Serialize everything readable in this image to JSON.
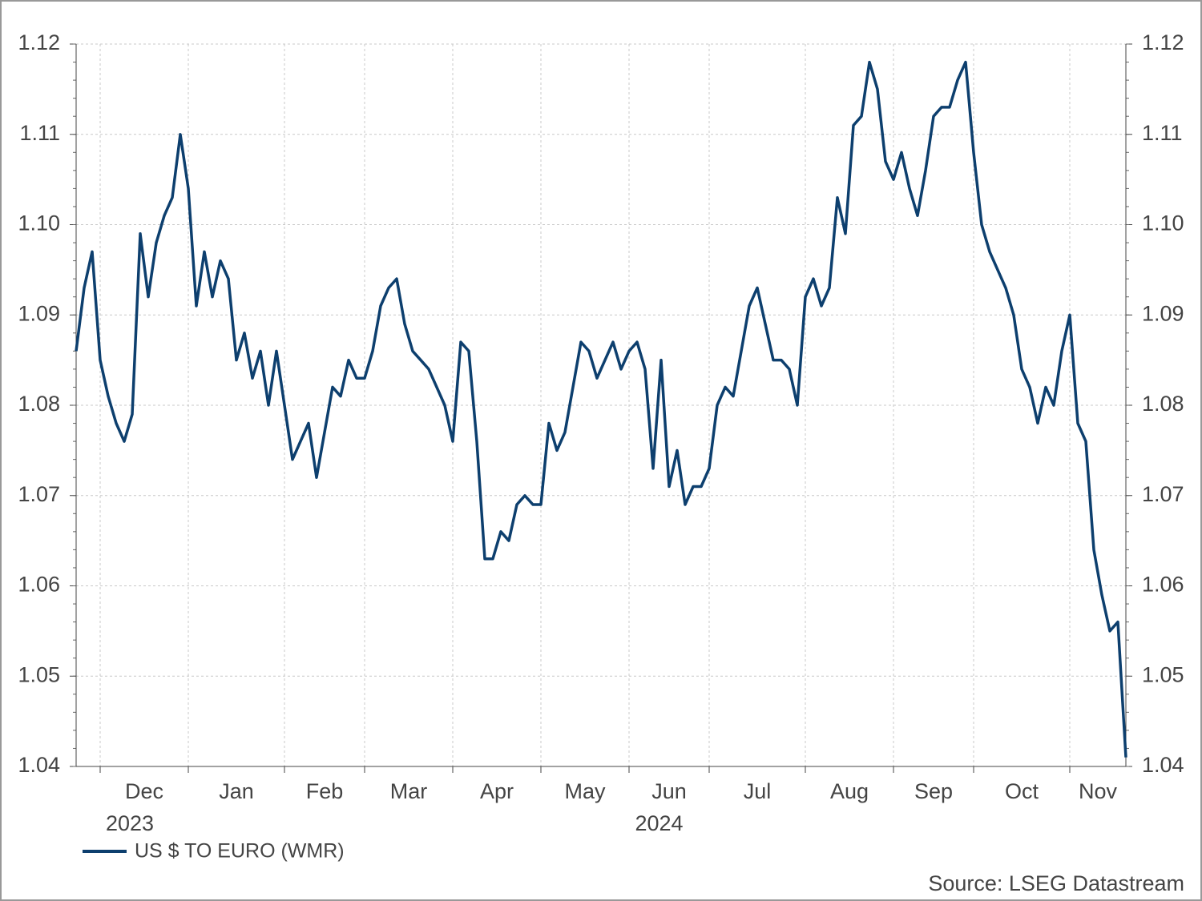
{
  "chart_data": {
    "type": "line",
    "series": [
      {
        "name": "US $ TO EURO (WMR)",
        "color": "#0d3f6e",
        "values": [
          1.086,
          1.093,
          1.097,
          1.085,
          1.081,
          1.078,
          1.076,
          1.079,
          1.099,
          1.092,
          1.098,
          1.101,
          1.103,
          1.11,
          1.104,
          1.091,
          1.097,
          1.092,
          1.096,
          1.094,
          1.085,
          1.088,
          1.083,
          1.086,
          1.08,
          1.086,
          1.08,
          1.074,
          1.076,
          1.078,
          1.072,
          1.077,
          1.082,
          1.081,
          1.085,
          1.083,
          1.083,
          1.086,
          1.091,
          1.093,
          1.094,
          1.089,
          1.086,
          1.085,
          1.084,
          1.082,
          1.08,
          1.076,
          1.087,
          1.086,
          1.076,
          1.063,
          1.063,
          1.066,
          1.065,
          1.069,
          1.07,
          1.069,
          1.069,
          1.078,
          1.075,
          1.077,
          1.082,
          1.087,
          1.086,
          1.083,
          1.085,
          1.087,
          1.084,
          1.086,
          1.087,
          1.084,
          1.073,
          1.085,
          1.071,
          1.075,
          1.069,
          1.071,
          1.071,
          1.073,
          1.08,
          1.082,
          1.081,
          1.086,
          1.091,
          1.093,
          1.089,
          1.085,
          1.085,
          1.084,
          1.08,
          1.092,
          1.094,
          1.091,
          1.093,
          1.103,
          1.099,
          1.111,
          1.112,
          1.118,
          1.115,
          1.107,
          1.105,
          1.108,
          1.104,
          1.101,
          1.106,
          1.112,
          1.113,
          1.113,
          1.116,
          1.118,
          1.108,
          1.1,
          1.097,
          1.095,
          1.093,
          1.09,
          1.084,
          1.082,
          1.078,
          1.082,
          1.08,
          1.086,
          1.09,
          1.078,
          1.076,
          1.064,
          1.059,
          1.055,
          1.056,
          1.041
        ]
      }
    ],
    "categories": [
      null,
      null,
      null,
      "Dec",
      null,
      null,
      null,
      null,
      null,
      null,
      null,
      null,
      null,
      null,
      "Jan",
      null,
      null,
      null,
      null,
      null,
      null,
      null,
      null,
      null,
      null,
      null,
      "Feb",
      null,
      null,
      null,
      null,
      null,
      null,
      null,
      null,
      null,
      "Mar",
      null,
      null,
      null,
      null,
      null,
      null,
      null,
      null,
      null,
      null,
      "Apr",
      null,
      null,
      null,
      null,
      null,
      null,
      null,
      null,
      null,
      null,
      "May",
      null,
      null,
      null,
      null,
      null,
      null,
      null,
      null,
      null,
      null,
      "Jun",
      null,
      null,
      null,
      null,
      null,
      null,
      null,
      null,
      null,
      "Jul",
      null,
      null,
      null,
      null,
      null,
      null,
      null,
      null,
      null,
      null,
      null,
      "Aug",
      null,
      null,
      null,
      null,
      null,
      null,
      null,
      null,
      null,
      null,
      "Sep",
      null,
      null,
      null,
      null,
      null,
      null,
      null,
      null,
      null,
      "Oct",
      null,
      null,
      null,
      null,
      null,
      null,
      null,
      null,
      null,
      null,
      null,
      "Nov",
      null,
      null,
      null,
      null,
      null,
      null,
      null
    ],
    "x_group_labels": [
      "2023",
      "2024"
    ],
    "ylim": [
      1.04,
      1.12
    ],
    "yticks": [
      1.04,
      1.05,
      1.06,
      1.07,
      1.08,
      1.09,
      {
        "value": 1.1,
        "label": "1.10"
      },
      1.11,
      1.12
    ],
    "grid": true,
    "legend": "bottom-left",
    "source": "Source: LSEG Datastream"
  }
}
